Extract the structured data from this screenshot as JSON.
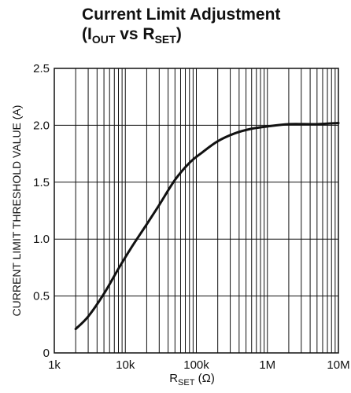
{
  "chart_data": {
    "type": "line",
    "title": {
      "line1": "Current Limit Adjustment",
      "line2_open": "(I",
      "line2_sub1": "OUT",
      "line2_mid": " vs R",
      "line2_sub2": "SET",
      "line2_close": ")"
    },
    "xlabel": {
      "main": "R",
      "sub": "SET",
      "unit": " (Ω)"
    },
    "ylabel": "CURRENT LIMIT THRESHOLD VALUE (A)",
    "x_scale": "log",
    "x_range": [
      1000,
      10000000
    ],
    "y_range": [
      0,
      2.5
    ],
    "x_ticks": [
      {
        "value": 1000,
        "label": "1k"
      },
      {
        "value": 10000,
        "label": "10k"
      },
      {
        "value": 100000,
        "label": "100k"
      },
      {
        "value": 1000000,
        "label": "1M"
      },
      {
        "value": 10000000,
        "label": "10M"
      }
    ],
    "y_ticks": [
      {
        "value": 0,
        "label": "0"
      },
      {
        "value": 0.5,
        "label": "0.5"
      },
      {
        "value": 1.0,
        "label": "1.0"
      },
      {
        "value": 1.5,
        "label": "1.5"
      },
      {
        "value": 2.0,
        "label": "2.0"
      },
      {
        "value": 2.5,
        "label": "2.5"
      }
    ],
    "grid": true,
    "series": [
      {
        "color": "#111111",
        "points": [
          {
            "x": 2000,
            "y": 0.21
          },
          {
            "x": 3000,
            "y": 0.32
          },
          {
            "x": 5000,
            "y": 0.52
          },
          {
            "x": 8000,
            "y": 0.74
          },
          {
            "x": 12000,
            "y": 0.92
          },
          {
            "x": 20000,
            "y": 1.13
          },
          {
            "x": 30000,
            "y": 1.3
          },
          {
            "x": 50000,
            "y": 1.52
          },
          {
            "x": 80000,
            "y": 1.67
          },
          {
            "x": 120000,
            "y": 1.76
          },
          {
            "x": 200000,
            "y": 1.86
          },
          {
            "x": 350000,
            "y": 1.93
          },
          {
            "x": 600000,
            "y": 1.97
          },
          {
            "x": 1000000,
            "y": 1.99
          },
          {
            "x": 2000000,
            "y": 2.01
          },
          {
            "x": 5000000,
            "y": 2.01
          },
          {
            "x": 10000000,
            "y": 2.02
          }
        ]
      }
    ]
  }
}
